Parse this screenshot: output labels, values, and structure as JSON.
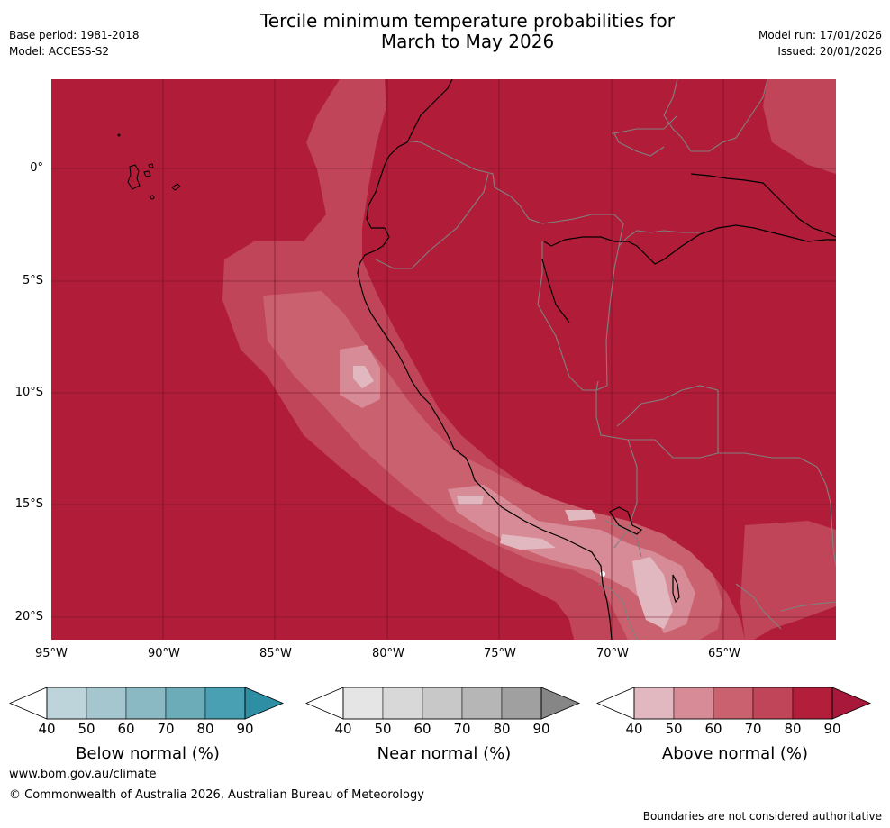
{
  "header": {
    "title_line1": "Tercile minimum temperature probabilities for",
    "title_line2": "March to May 2026",
    "base_period": "Base period: 1981-2018",
    "model": "Model: ACCESS-S2",
    "model_run": "Model run: 17/01/2026",
    "issued": "Issued: 20/01/2026"
  },
  "map": {
    "x_ticks": [
      "95°W",
      "90°W",
      "85°W",
      "80°W",
      "75°W",
      "70°W",
      "65°W"
    ],
    "y_ticks": [
      "0°",
      "5°S",
      "10°S",
      "15°S",
      "20°S"
    ],
    "colors": {
      "ocean_base": "#b11d39",
      "band_70_80": "#c04559",
      "band_60_70": "#ca616f",
      "band_50_60": "#d78b96",
      "band_40_50": "#e2b8c0",
      "coastline": "#000000",
      "borders": "#808080",
      "gridline": "#6b1022"
    }
  },
  "colorbars": [
    {
      "label": "Below normal (%)",
      "ticks": [
        "40",
        "50",
        "60",
        "70",
        "80",
        "90"
      ],
      "colors": [
        "#ffffff",
        "#bcd4da",
        "#a5c6ce",
        "#8ab8c3",
        "#6cabb8",
        "#49a0b2",
        "#2e8fa4"
      ]
    },
    {
      "label": "Near normal (%)",
      "ticks": [
        "40",
        "50",
        "60",
        "70",
        "80",
        "90"
      ],
      "colors": [
        "#ffffff",
        "#e5e5e5",
        "#d8d8d8",
        "#c8c8c8",
        "#b6b6b6",
        "#a0a0a0",
        "#868686"
      ]
    },
    {
      "label": "Above normal (%)",
      "ticks": [
        "40",
        "50",
        "60",
        "70",
        "80",
        "90"
      ],
      "colors": [
        "#ffffff",
        "#e2b8c0",
        "#d78b96",
        "#ca616f",
        "#c04559",
        "#b31f3b",
        "#a8183a"
      ]
    }
  ],
  "footer": {
    "website": "www.bom.gov.au/climate",
    "copyright": "© Commonwealth of Australia 2026, Australian Bureau of Meteorology",
    "disclaimer": "Boundaries are not considered authoritative"
  }
}
